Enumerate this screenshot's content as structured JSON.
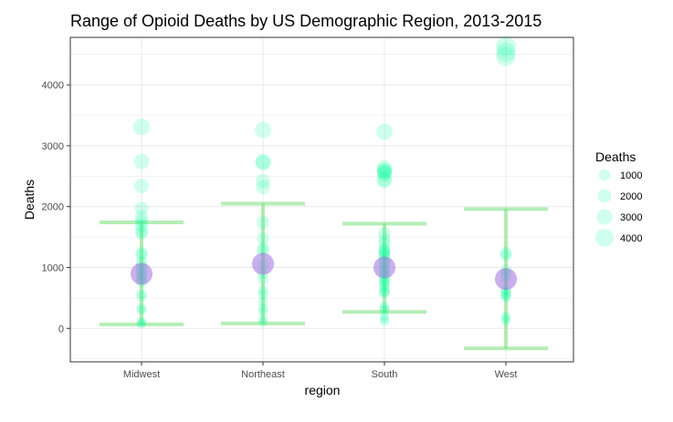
{
  "chart_data": {
    "type": "scatter",
    "title": "Range of Opioid Deaths by US Demographic Region, 2013-2015",
    "xlabel": "region",
    "ylabel": "Deaths",
    "categories": [
      "Midwest",
      "Northeast",
      "South",
      "West"
    ],
    "ylim": [
      -550,
      4780
    ],
    "yticks": [
      0,
      1000,
      2000,
      3000,
      4000
    ],
    "grid": true,
    "legend": {
      "title": "Deaths",
      "position": "right",
      "entries": [
        {
          "label": "1000",
          "value": 1000
        },
        {
          "label": "2000",
          "value": 2000
        },
        {
          "label": "3000",
          "value": 3000
        },
        {
          "label": "4000",
          "value": 4000
        }
      ]
    },
    "points": {
      "color": "#00ff99",
      "Midwest": [
        3310,
        2740,
        2340,
        1970,
        1830,
        1760,
        1690,
        1600,
        1560,
        1240,
        1210,
        1090,
        1030,
        980,
        930,
        880,
        840,
        800,
        760,
        560,
        520,
        330,
        300,
        120,
        90,
        70
      ],
      "Northeast": [
        3260,
        2740,
        2720,
        2420,
        2320,
        1740,
        1480,
        1320,
        1280,
        1050,
        900,
        800,
        620,
        560,
        440,
        330,
        280,
        150,
        100
      ],
      "South": [
        3230,
        2640,
        2600,
        2580,
        2560,
        2540,
        2450,
        2420,
        1560,
        1460,
        1400,
        1310,
        1280,
        1260,
        1230,
        1200,
        1150,
        1100,
        1060,
        1000,
        960,
        900,
        860,
        820,
        780,
        750,
        720,
        680,
        620,
        600,
        580,
        360,
        320,
        300,
        200,
        160,
        110
      ],
      "West": [
        4640,
        4540,
        4470,
        1240,
        1200,
        960,
        900,
        820,
        640,
        600,
        560,
        540,
        510,
        200,
        160,
        120
      ]
    },
    "means": {
      "color": "#a070e0",
      "values": [
        895,
        1060,
        1000,
        810
      ]
    },
    "error_bars": {
      "color": "#77e07a",
      "lower": [
        65,
        80,
        270,
        -330
      ],
      "upper": [
        1740,
        2050,
        1720,
        1960
      ]
    }
  }
}
